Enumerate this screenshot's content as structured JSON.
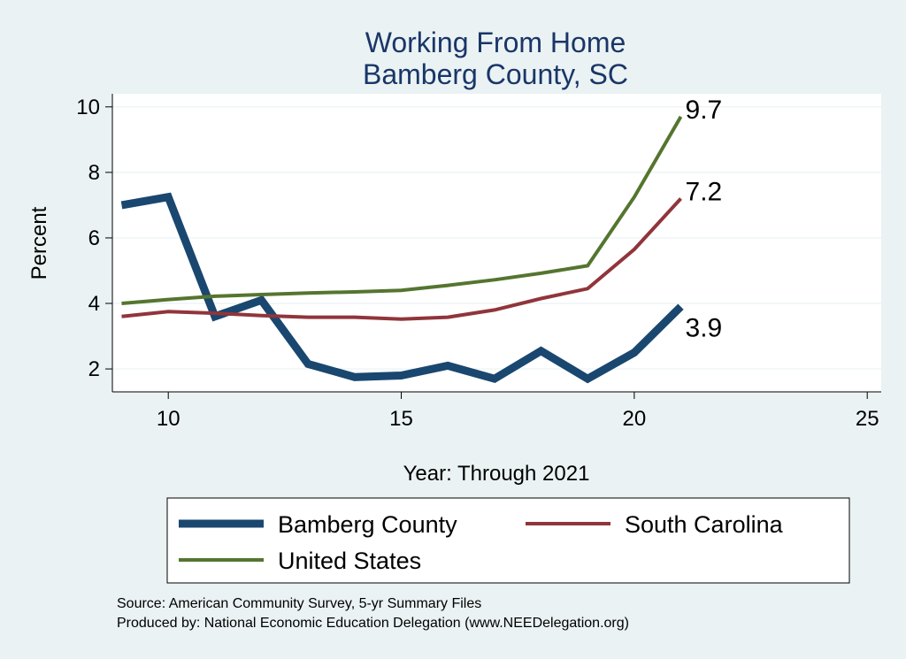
{
  "chart_data": {
    "type": "line",
    "title": "Working From Home",
    "subtitle": "Bamberg County, SC",
    "xlabel": "Year: Through 2021",
    "ylabel": "Percent",
    "xlim": [
      8.8,
      25.3
    ],
    "ylim": [
      1.3,
      10.4
    ],
    "xticks": [
      10,
      15,
      20,
      25
    ],
    "yticks": [
      2,
      4,
      6,
      8,
      10
    ],
    "grid": true,
    "legend_position": "bottom",
    "x": [
      9,
      10,
      11,
      12,
      13,
      14,
      15,
      16,
      17,
      18,
      19,
      20,
      21
    ],
    "series": [
      {
        "name": "Bamberg County",
        "color": "#1a476f",
        "values": [
          7.0,
          7.25,
          3.6,
          4.1,
          2.15,
          1.75,
          1.8,
          2.1,
          1.7,
          2.55,
          1.7,
          2.5,
          3.9
        ],
        "end_label": "3.9"
      },
      {
        "name": "South Carolina",
        "color": "#90353b",
        "values": [
          3.6,
          3.75,
          3.7,
          3.63,
          3.58,
          3.58,
          3.52,
          3.58,
          3.8,
          4.15,
          4.45,
          5.65,
          7.2
        ],
        "end_label": "7.2"
      },
      {
        "name": "United States",
        "color": "#55752f",
        "values": [
          4.0,
          4.12,
          4.22,
          4.27,
          4.32,
          4.35,
          4.4,
          4.55,
          4.72,
          4.92,
          5.15,
          7.25,
          9.7
        ],
        "end_label": "9.7"
      }
    ],
    "notes": [
      "Source: American Community Survey, 5-yr Summary Files",
      "Produced by: National Economic Education Delegation (www.NEEDelegation.org)"
    ]
  }
}
